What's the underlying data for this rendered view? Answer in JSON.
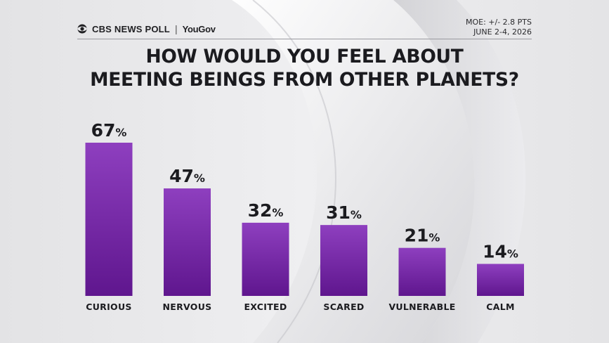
{
  "header": {
    "brand_poll": "CBS NEWS POLL",
    "brand_yougov": "YouGov",
    "moe": "MOE: +/- 2.8 PTS",
    "dates": "JUNE 2-4, 2026"
  },
  "title_line1": "HOW WOULD YOU FEEL ABOUT",
  "title_line2": "MEETING BEINGS FROM OTHER PLANETS?",
  "colors": {
    "bar_top": "#8e3fbf",
    "bar_bottom": "#5f168e",
    "background": "#e6e6e8",
    "text": "#1b1b1f"
  },
  "chart_data": {
    "type": "bar",
    "categories": [
      "CURIOUS",
      "NERVOUS",
      "EXCITED",
      "SCARED",
      "VULNERABLE",
      "CALM"
    ],
    "values": [
      67,
      47,
      32,
      31,
      21,
      14
    ],
    "value_suffix": "%",
    "title": "HOW WOULD YOU FEEL ABOUT MEETING BEINGS FROM OTHER PLANETS?",
    "xlabel": "",
    "ylabel": "",
    "ylim": [
      0,
      100
    ],
    "grid": false,
    "legend": "none"
  }
}
